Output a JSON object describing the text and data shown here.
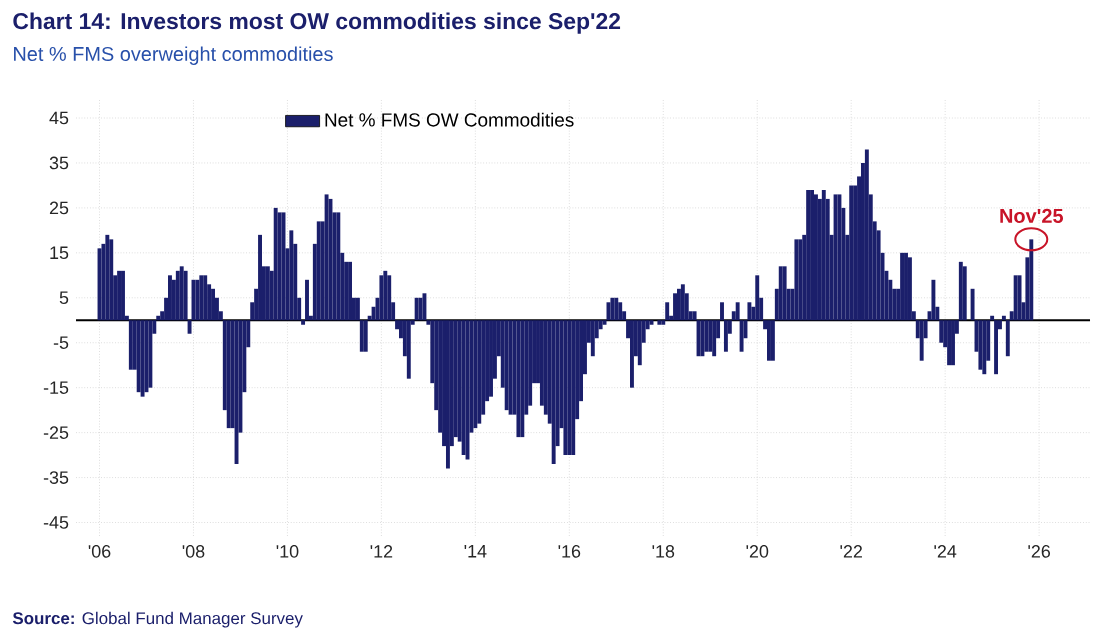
{
  "chart_data": {
    "type": "bar",
    "title": "Chart 14: Investors most OW commodities since Sep'22",
    "subtitle": "Net % FMS overweight commodities",
    "annotations": [
      {
        "text": "Nov'25",
        "x": "2025-11",
        "y": 18
      },
      "**Source:** Global Fund Manager Survey"
    ],
    "x": [
      "2006-01",
      "2006-02",
      "2006-03",
      "2006-04",
      "2006-05",
      "2006-06",
      "2006-07",
      "2006-08",
      "2006-09",
      "2006-10",
      "2006-11",
      "2006-12",
      "2007-01",
      "2007-02",
      "2007-03",
      "2007-04",
      "2007-05",
      "2007-06",
      "2007-07",
      "2007-08",
      "2007-09",
      "2007-10",
      "2007-11",
      "2007-12",
      "2008-01",
      "2008-02",
      "2008-03",
      "2008-04",
      "2008-05",
      "2008-06",
      "2008-07",
      "2008-08",
      "2008-09",
      "2008-10",
      "2008-11",
      "2008-12",
      "2009-01",
      "2009-02",
      "2009-03",
      "2009-04",
      "2009-05",
      "2009-06",
      "2009-07",
      "2009-08",
      "2009-09",
      "2009-10",
      "2009-11",
      "2009-12",
      "2010-01",
      "2010-02",
      "2010-03",
      "2010-04",
      "2010-05",
      "2010-06",
      "2010-07",
      "2010-08",
      "2010-09",
      "2010-10",
      "2010-11",
      "2010-12",
      "2011-01",
      "2011-02",
      "2011-03",
      "2011-04",
      "2011-05",
      "2011-06",
      "2011-07",
      "2011-08",
      "2011-09",
      "2011-10",
      "2011-11",
      "2011-12",
      "2012-01",
      "2012-02",
      "2012-03",
      "2012-04",
      "2012-05",
      "2012-06",
      "2012-07",
      "2012-08",
      "2012-09",
      "2012-10",
      "2012-11",
      "2012-12",
      "2013-01",
      "2013-02",
      "2013-03",
      "2013-04",
      "2013-05",
      "2013-06",
      "2013-07",
      "2013-08",
      "2013-09",
      "2013-10",
      "2013-11",
      "2013-12",
      "2014-01",
      "2014-02",
      "2014-03",
      "2014-04",
      "2014-05",
      "2014-06",
      "2014-07",
      "2014-08",
      "2014-09",
      "2014-10",
      "2014-11",
      "2014-12",
      "2015-01",
      "2015-02",
      "2015-03",
      "2015-04",
      "2015-05",
      "2015-06",
      "2015-07",
      "2015-08",
      "2015-09",
      "2015-10",
      "2015-11",
      "2015-12",
      "2016-01",
      "2016-02",
      "2016-03",
      "2016-04",
      "2016-05",
      "2016-06",
      "2016-07",
      "2016-08",
      "2016-09",
      "2016-10",
      "2016-11",
      "2016-12",
      "2017-01",
      "2017-02",
      "2017-03",
      "2017-04",
      "2017-05",
      "2017-06",
      "2017-07",
      "2017-08",
      "2017-09",
      "2017-10",
      "2017-11",
      "2017-12",
      "2018-01",
      "2018-02",
      "2018-03",
      "2018-04",
      "2018-05",
      "2018-06",
      "2018-07",
      "2018-08",
      "2018-09",
      "2018-10",
      "2018-11",
      "2018-12",
      "2019-01",
      "2019-02",
      "2019-03",
      "2019-04",
      "2019-05",
      "2019-06",
      "2019-07",
      "2019-08",
      "2019-09",
      "2019-10",
      "2019-11",
      "2019-12",
      "2020-01",
      "2020-02",
      "2020-03",
      "2020-04",
      "2020-05",
      "2020-06",
      "2020-07",
      "2020-08",
      "2020-09",
      "2020-10",
      "2020-11",
      "2020-12",
      "2021-01",
      "2021-02",
      "2021-03",
      "2021-04",
      "2021-05",
      "2021-06",
      "2021-07",
      "2021-08",
      "2021-09",
      "2021-10",
      "2021-11",
      "2021-12",
      "2022-01",
      "2022-02",
      "2022-03",
      "2022-04",
      "2022-05",
      "2022-06",
      "2022-07",
      "2022-08",
      "2022-09",
      "2022-10",
      "2022-11",
      "2022-12",
      "2023-01",
      "2023-02",
      "2023-03",
      "2023-04",
      "2023-05",
      "2023-06",
      "2023-07",
      "2023-08",
      "2023-09",
      "2023-10",
      "2023-11",
      "2023-12",
      "2024-01",
      "2024-02",
      "2024-03",
      "2024-04",
      "2024-05",
      "2024-06",
      "2024-07",
      "2024-08",
      "2024-09",
      "2024-10",
      "2024-11",
      "2024-12",
      "2025-01",
      "2025-02",
      "2025-03",
      "2025-04",
      "2025-05",
      "2025-06",
      "2025-07",
      "2025-08",
      "2025-09",
      "2025-10",
      "2025-11"
    ],
    "series": [
      {
        "name": "Net % FMS OW Commodities",
        "color": "#1b1f6b",
        "values": [
          16,
          17,
          19,
          18,
          10,
          11,
          11,
          1,
          -11,
          -11,
          -16,
          -17,
          -16,
          -15,
          -3,
          1,
          2,
          5,
          10,
          9,
          11,
          12,
          11,
          -3,
          9,
          9,
          10,
          10,
          8,
          7,
          5,
          2,
          -20,
          -24,
          -24,
          -32,
          -25,
          -16,
          -6,
          4,
          7,
          19,
          12,
          12,
          11,
          25,
          24,
          24,
          16,
          20,
          17,
          5,
          -1,
          9,
          1,
          17,
          22,
          22,
          28,
          27,
          24,
          24,
          15,
          13,
          13,
          5,
          5,
          -7,
          -7,
          1,
          3,
          5,
          10,
          11,
          10,
          4,
          -2,
          -4,
          -8,
          -13,
          -1,
          5,
          5,
          6,
          -1,
          -14,
          -20,
          -25,
          -28,
          -33,
          -28,
          -26,
          -27,
          -30,
          -31,
          -25,
          -24,
          -23,
          -21,
          -18,
          -17,
          -13,
          -8,
          -15,
          -20,
          -21,
          -21,
          -26,
          -26,
          -21,
          -19,
          -14,
          -14,
          -19,
          -21,
          -23,
          -32,
          -28,
          -24,
          -30,
          -30,
          -30,
          -22,
          -18,
          -12,
          -5,
          -8,
          -4,
          -2,
          -1,
          4,
          5,
          5,
          4,
          2,
          -4,
          -15,
          -8,
          -10,
          -5,
          -2,
          -1,
          0,
          -1,
          -1,
          4,
          1,
          6,
          7,
          8,
          6,
          2,
          2,
          -8,
          -8,
          -7,
          -7,
          -8,
          -4,
          4,
          -7,
          -3,
          2,
          4,
          -7,
          -4,
          4,
          3,
          10,
          5,
          -2,
          -9,
          -9,
          7,
          12,
          12,
          7,
          7,
          18,
          18,
          19,
          29,
          29,
          28,
          27,
          29,
          27,
          19,
          28,
          28,
          25,
          19,
          30,
          30,
          32,
          35,
          38,
          28,
          22,
          20,
          15,
          11,
          9,
          7,
          7,
          15,
          15,
          14,
          2,
          -4,
          -9,
          -4,
          2,
          9,
          3,
          -5,
          -6,
          -10,
          -10,
          -3,
          13,
          12,
          0,
          7,
          -7,
          -11,
          -12,
          -9,
          1,
          -12,
          -2,
          1,
          -8,
          2,
          10,
          10,
          4,
          14,
          18
        ]
      }
    ],
    "xlim": [
      "2005-07",
      "2027-02"
    ],
    "xticks": [
      {
        "value": "2006",
        "label": "'06"
      },
      {
        "value": "2008",
        "label": "'08"
      },
      {
        "value": "2010",
        "label": "'10"
      },
      {
        "value": "2012",
        "label": "'12"
      },
      {
        "value": "2014",
        "label": "'14"
      },
      {
        "value": "2016",
        "label": "'16"
      },
      {
        "value": "2018",
        "label": "'18"
      },
      {
        "value": "2020",
        "label": "'20"
      },
      {
        "value": "2022",
        "label": "'22"
      },
      {
        "value": "2024",
        "label": "'24"
      },
      {
        "value": "2026",
        "label": "'26"
      }
    ],
    "ylim": [
      -48,
      49
    ],
    "yticks": [
      -45,
      -35,
      -25,
      -15,
      -5,
      5,
      15,
      25,
      35,
      45
    ],
    "grid": true,
    "legend": "top left"
  }
}
